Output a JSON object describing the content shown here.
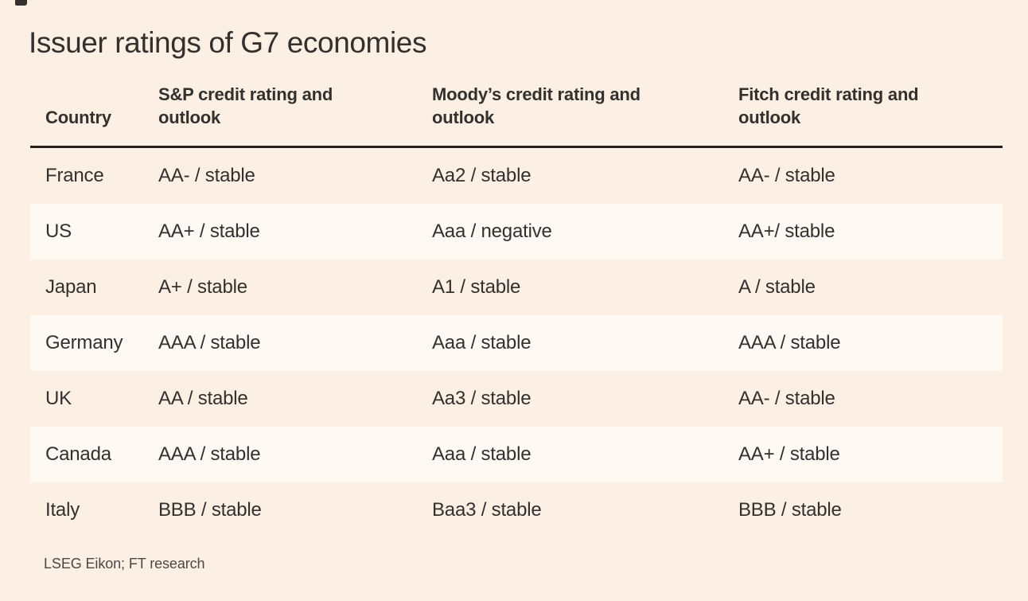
{
  "title": "Issuer ratings of G7 economies",
  "source": "LSEG Eikon; FT research",
  "colors": {
    "background": "#fcefe3",
    "row_stripe": "#fff9f3",
    "text": "#33302e",
    "header_rule": "#26201c",
    "source_text": "#4d4845"
  },
  "chart_data": {
    "type": "table",
    "title": "Issuer ratings of G7 economies",
    "columns": [
      "Country",
      "S&P credit rating and outlook",
      "Moody’s credit rating and outlook",
      "Fitch credit rating and outlook"
    ],
    "rows": [
      [
        "France",
        "AA- / stable",
        "Aa2 / stable",
        "AA- / stable"
      ],
      [
        "US",
        "AA+ / stable",
        "Aaa / negative",
        "AA+/ stable"
      ],
      [
        "Japan",
        "A+ / stable",
        "A1 / stable",
        "A / stable"
      ],
      [
        "Germany",
        "AAA / stable",
        "Aaa / stable",
        "AAA / stable"
      ],
      [
        "UK",
        "AA / stable",
        "Aa3 / stable",
        "AA- / stable"
      ],
      [
        "Canada",
        "AAA / stable",
        "Aaa / stable",
        "AA+ / stable"
      ],
      [
        "Italy",
        "BBB / stable",
        "Baa3 / stable",
        "BBB / stable"
      ]
    ],
    "source": "LSEG Eikon; FT research",
    "layout": {
      "striped_row_indices": [
        1,
        3,
        5
      ],
      "grid": "horizontal stripes only, heavy rule under header"
    }
  }
}
